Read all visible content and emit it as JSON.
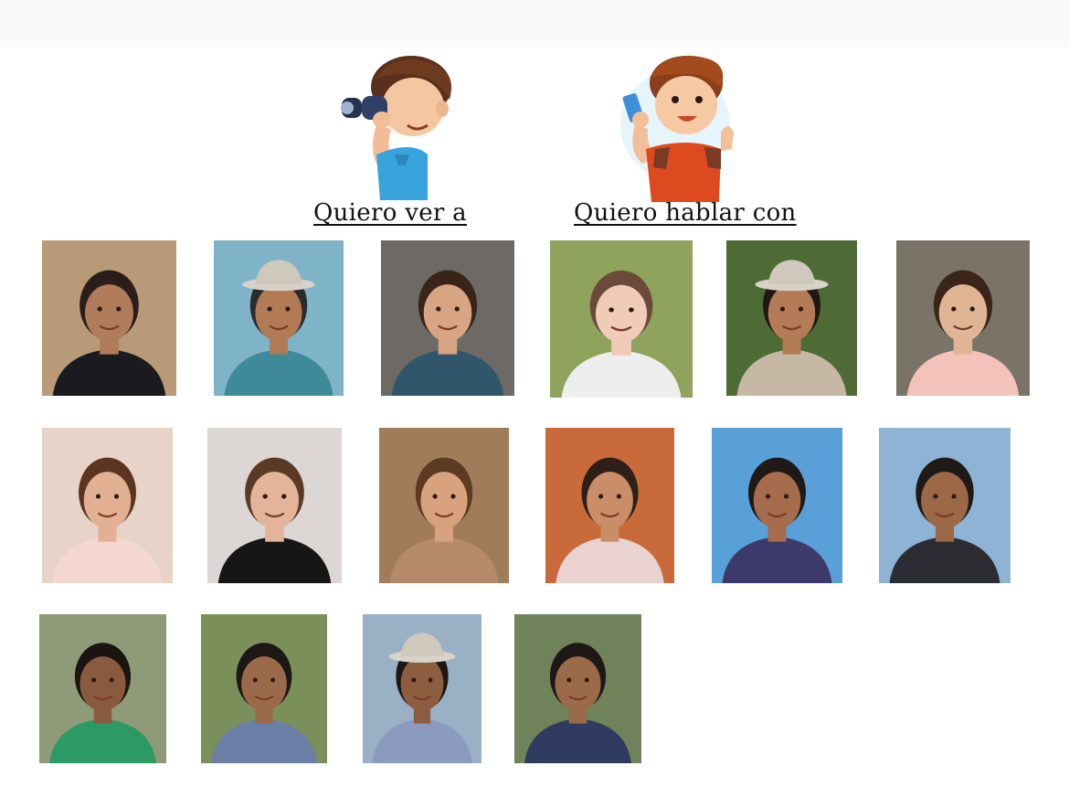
{
  "choices": {
    "see": {
      "label": "Quiero ver a",
      "icon": "binoculars-boy-icon"
    },
    "talk": {
      "label": "Quiero hablar con",
      "icon": "phone-boy-icon"
    }
  },
  "photos": [
    {
      "name": "older-woman-photo",
      "bg": "#b99a78",
      "skin": "#b07c5c",
      "hair": "#2a1e1a",
      "shirt": "#1b1b1f",
      "hat": false
    },
    {
      "name": "man-cap-sunglasses-photo",
      "bg": "#7fb4c8",
      "skin": "#b27a55",
      "hair": "#2b2b2b",
      "shirt": "#3e8a9a",
      "hat": true
    },
    {
      "name": "woman-selfie-photo",
      "bg": "#6d6a66",
      "skin": "#d7a583",
      "hair": "#3a2418",
      "shirt": "#31566b",
      "hat": false
    },
    {
      "name": "baby-pink-bow-photo",
      "bg": "#8fa35d",
      "skin": "#f0cbb7",
      "hair": "#6b4a3a",
      "shirt": "#eeeeee",
      "hat": false
    },
    {
      "name": "man-cowboy-hat-photo",
      "bg": "#4e6b35",
      "skin": "#b47b57",
      "hair": "#211713",
      "shirt": "#c7b7a5",
      "hat": true
    },
    {
      "name": "woman-with-baby-photo",
      "bg": "#7a7468",
      "skin": "#e0b596",
      "hair": "#3b2418",
      "shirt": "#f2c2bb",
      "hat": false
    },
    {
      "name": "girl-smiling-photo",
      "bg": "#e7d3c7",
      "skin": "#e2b193",
      "hair": "#5b3522",
      "shirt": "#f4d8d0",
      "hat": false
    },
    {
      "name": "girl-black-dress-photo",
      "bg": "#dcd6d4",
      "skin": "#e3b499",
      "hair": "#5a3a25",
      "shirt": "#161616",
      "hat": false
    },
    {
      "name": "woman-closeup-photo",
      "bg": "#a07c5a",
      "skin": "#d7a27d",
      "hair": "#5c3b22",
      "shirt": "#b58a6b",
      "hat": false
    },
    {
      "name": "girl-pigtails-photo",
      "bg": "#c86a3a",
      "skin": "#c98d68",
      "hair": "#2e1f18",
      "shirt": "#e9d2cf",
      "hat": false
    },
    {
      "name": "man-waterfall-photo",
      "bg": "#5aa0d8",
      "skin": "#a56c4d",
      "hair": "#1f1a17",
      "shirt": "#3b3a6b",
      "hat": false
    },
    {
      "name": "man-nike-shirt-photo",
      "bg": "#8fb3d4",
      "skin": "#9c6848",
      "hair": "#1e1a18",
      "shirt": "#2b2d33",
      "hat": false
    },
    {
      "name": "woman-green-top-photo",
      "bg": "#8f9a78",
      "skin": "#8a5a3e",
      "hair": "#1b1512",
      "shirt": "#2d9a66",
      "hat": false
    },
    {
      "name": "man-plaid-shirt-photo",
      "bg": "#7b8f5a",
      "skin": "#9b6a4b",
      "hair": "#1d1815",
      "shirt": "#6b7fa6",
      "hat": false
    },
    {
      "name": "man-cap-plaid-photo",
      "bg": "#9ab0c4",
      "skin": "#8d5d40",
      "hair": "#1d1815",
      "shirt": "#8a9bbd",
      "hat": true
    },
    {
      "name": "man-mustache-photo",
      "bg": "#70825a",
      "skin": "#9b6a4a",
      "hair": "#1d1815",
      "shirt": "#2e3a5e",
      "hat": false
    }
  ]
}
